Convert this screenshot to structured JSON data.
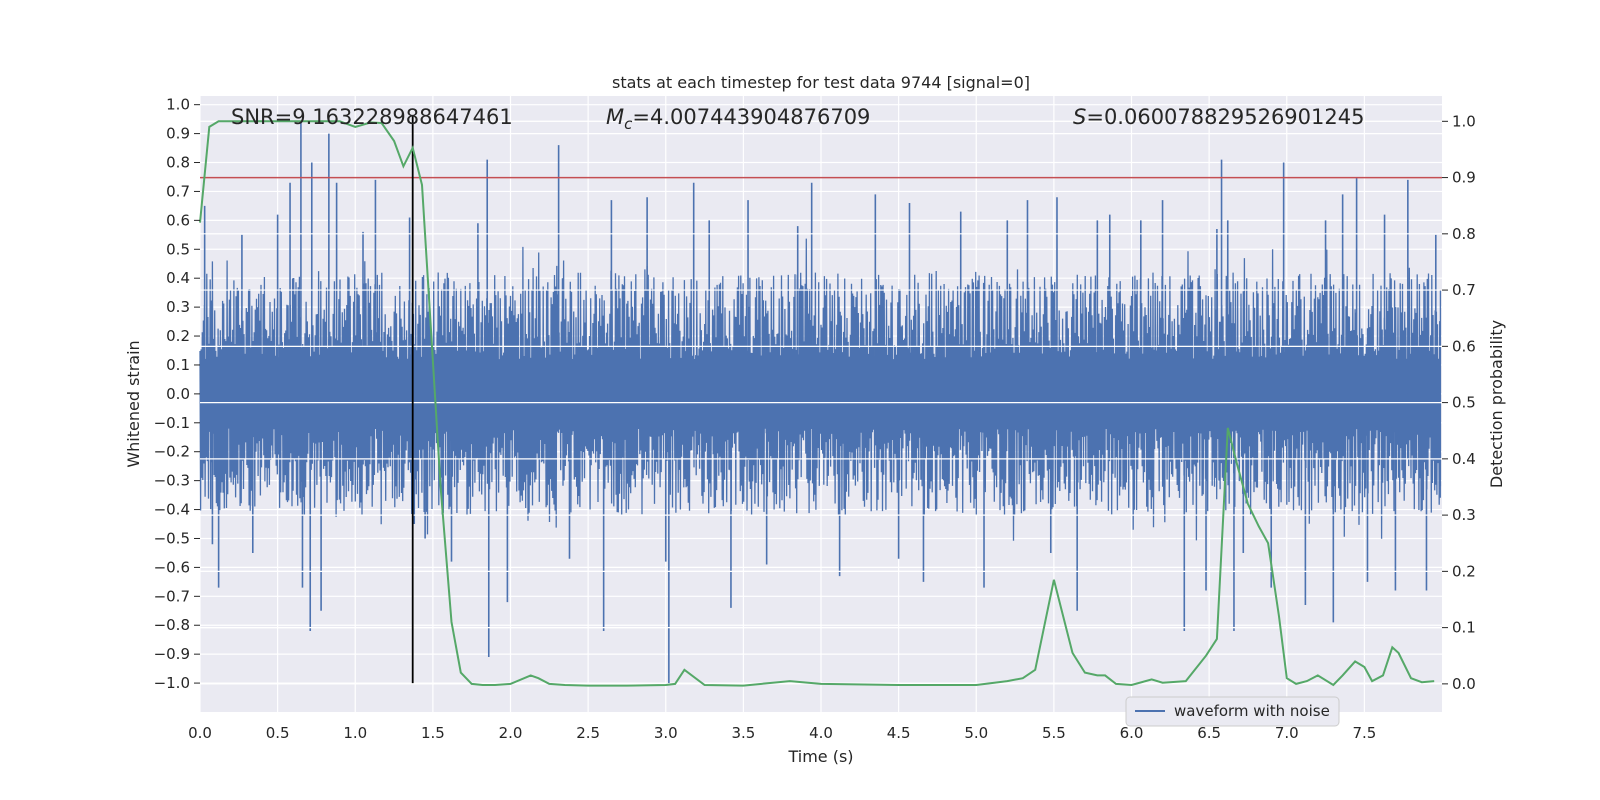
{
  "chart_data": {
    "type": "line",
    "title": "stats at each timestep for test data 9744 [signal=0]",
    "xlabel": "Time (s)",
    "ylabel_left": "Whitened strain",
    "ylabel_right": "Detection probability",
    "xlim": [
      0.0,
      8.0
    ],
    "ylim_left": [
      -1.1,
      1.03
    ],
    "ylim_right": [
      -0.05,
      1.045
    ],
    "xticks": [
      0.0,
      0.5,
      1.0,
      1.5,
      2.0,
      2.5,
      3.0,
      3.5,
      4.0,
      4.5,
      5.0,
      5.5,
      6.0,
      6.5,
      7.0,
      7.5
    ],
    "xtick_labels": [
      "0.0",
      "0.5",
      "1.0",
      "1.5",
      "2.0",
      "2.5",
      "3.0",
      "3.5",
      "4.0",
      "4.5",
      "5.0",
      "5.5",
      "6.0",
      "6.5",
      "7.0",
      "7.5"
    ],
    "yticks_left": [
      1.0,
      0.9,
      0.8,
      0.7,
      0.6,
      0.5,
      0.4,
      0.3,
      0.2,
      0.1,
      0.0,
      -0.1,
      -0.2,
      -0.3,
      -0.4,
      -0.5,
      -0.6,
      -0.7,
      -0.8,
      -0.9,
      -1.0
    ],
    "ytick_labels_left": [
      "1.0",
      "0.9",
      "0.8",
      "0.7",
      "0.6",
      "0.5",
      "0.4",
      "0.3",
      "0.2",
      "0.1",
      "0.0",
      "−0.1",
      "−0.2",
      "−0.3",
      "−0.4",
      "−0.5",
      "−0.6",
      "−0.7",
      "−0.8",
      "−0.9",
      "−1.0"
    ],
    "yticks_right": [
      1.0,
      0.9,
      0.8,
      0.7,
      0.6,
      0.5,
      0.4,
      0.3,
      0.2,
      0.1,
      0.0
    ],
    "ytick_labels_right": [
      "1.0",
      "0.9",
      "0.8",
      "0.7",
      "0.6",
      "0.5",
      "0.4",
      "0.3",
      "0.2",
      "0.1",
      "0.0"
    ],
    "annotations": {
      "snr": "SNR=9.163228988647461",
      "mc_symbol": "M",
      "mc_sub": "c",
      "mc_value": "=4.007443904876709",
      "s_symbol": "S",
      "s_value": "=0.060078829526901245"
    },
    "legend": {
      "label": "waveform with noise",
      "position": "lower-right"
    },
    "threshold_line": {
      "axis": "right",
      "y": 0.9,
      "color": "#c44e52"
    },
    "marker_line": {
      "x": 1.37,
      "color": "#000000"
    },
    "waveform": {
      "name": "waveform with noise",
      "color": "#4c72b0",
      "typical_envelope": 0.42,
      "spikes": [
        {
          "t": 0.03,
          "v": 0.65
        },
        {
          "t": 0.08,
          "v": -0.52
        },
        {
          "t": 0.12,
          "v": -0.67
        },
        {
          "t": 0.27,
          "v": 0.55
        },
        {
          "t": 0.34,
          "v": -0.55
        },
        {
          "t": 0.5,
          "v": 0.62
        },
        {
          "t": 0.58,
          "v": 0.73
        },
        {
          "t": 0.65,
          "v": 0.94
        },
        {
          "t": 0.66,
          "v": -0.67
        },
        {
          "t": 0.71,
          "v": -0.82
        },
        {
          "t": 0.72,
          "v": 0.8
        },
        {
          "t": 0.78,
          "v": -0.75
        },
        {
          "t": 0.83,
          "v": 0.9
        },
        {
          "t": 0.88,
          "v": 0.73
        },
        {
          "t": 1.05,
          "v": 0.56
        },
        {
          "t": 1.13,
          "v": 0.74
        },
        {
          "t": 1.35,
          "v": 0.61
        },
        {
          "t": 1.38,
          "v": -0.45
        },
        {
          "t": 1.45,
          "v": -0.5
        },
        {
          "t": 1.62,
          "v": -0.58
        },
        {
          "t": 1.79,
          "v": 0.59
        },
        {
          "t": 1.85,
          "v": 0.81
        },
        {
          "t": 1.86,
          "v": -0.91
        },
        {
          "t": 1.98,
          "v": -0.72
        },
        {
          "t": 2.31,
          "v": 0.86
        },
        {
          "t": 2.38,
          "v": -0.57
        },
        {
          "t": 2.6,
          "v": -0.82
        },
        {
          "t": 2.65,
          "v": 0.67
        },
        {
          "t": 2.88,
          "v": 0.68
        },
        {
          "t": 3.0,
          "v": -0.58
        },
        {
          "t": 3.02,
          "v": -1.0
        },
        {
          "t": 3.18,
          "v": 0.73
        },
        {
          "t": 3.28,
          "v": 0.6
        },
        {
          "t": 3.42,
          "v": -0.74
        },
        {
          "t": 3.53,
          "v": 0.67
        },
        {
          "t": 3.65,
          "v": -0.59
        },
        {
          "t": 3.85,
          "v": 0.58
        },
        {
          "t": 3.94,
          "v": 0.73
        },
        {
          "t": 4.12,
          "v": -0.63
        },
        {
          "t": 4.35,
          "v": 0.69
        },
        {
          "t": 4.5,
          "v": -0.57
        },
        {
          "t": 4.57,
          "v": 0.66
        },
        {
          "t": 4.66,
          "v": -0.65
        },
        {
          "t": 4.9,
          "v": 0.63
        },
        {
          "t": 5.05,
          "v": -0.67
        },
        {
          "t": 5.2,
          "v": 0.6
        },
        {
          "t": 5.33,
          "v": 0.67
        },
        {
          "t": 5.48,
          "v": -0.55
        },
        {
          "t": 5.52,
          "v": 0.68
        },
        {
          "t": 5.65,
          "v": -0.75
        },
        {
          "t": 5.78,
          "v": 0.6
        },
        {
          "t": 5.86,
          "v": 0.62
        },
        {
          "t": 6.06,
          "v": 0.6
        },
        {
          "t": 6.2,
          "v": 0.67
        },
        {
          "t": 6.34,
          "v": -0.82
        },
        {
          "t": 6.48,
          "v": -0.68
        },
        {
          "t": 6.55,
          "v": 0.57
        },
        {
          "t": 6.58,
          "v": 0.81
        },
        {
          "t": 6.62,
          "v": 0.6
        },
        {
          "t": 6.66,
          "v": -0.82
        },
        {
          "t": 6.72,
          "v": -0.55
        },
        {
          "t": 6.9,
          "v": -0.67
        },
        {
          "t": 6.98,
          "v": 0.8
        },
        {
          "t": 7.12,
          "v": -0.73
        },
        {
          "t": 7.25,
          "v": 0.6
        },
        {
          "t": 7.3,
          "v": -0.79
        },
        {
          "t": 7.36,
          "v": 0.69
        },
        {
          "t": 7.45,
          "v": 0.75
        },
        {
          "t": 7.48,
          "v": -0.1
        },
        {
          "t": 7.52,
          "v": -0.65
        },
        {
          "t": 7.63,
          "v": 0.62
        },
        {
          "t": 7.7,
          "v": -0.68
        },
        {
          "t": 7.78,
          "v": 0.74
        },
        {
          "t": 7.9,
          "v": -0.68
        },
        {
          "t": 7.96,
          "v": 0.55
        }
      ]
    },
    "detection_probability": {
      "name": "detection probability",
      "color": "#55a868",
      "axis": "right",
      "x": [
        0.0,
        0.06,
        0.12,
        0.2,
        0.3,
        0.4,
        0.5,
        0.6,
        0.7,
        0.8,
        0.9,
        1.0,
        1.1,
        1.17,
        1.25,
        1.31,
        1.37,
        1.43,
        1.49,
        1.55,
        1.62,
        1.68,
        1.75,
        1.82,
        1.9,
        2.0,
        2.13,
        2.18,
        2.25,
        2.35,
        2.5,
        2.75,
        3.0,
        3.06,
        3.12,
        3.25,
        3.5,
        3.8,
        4.0,
        4.5,
        5.0,
        5.2,
        5.3,
        5.38,
        5.5,
        5.56,
        5.62,
        5.7,
        5.78,
        5.83,
        5.9,
        6.0,
        6.13,
        6.2,
        6.35,
        6.48,
        6.55,
        6.62,
        6.68,
        6.75,
        6.82,
        6.88,
        6.95,
        7.0,
        7.06,
        7.13,
        7.2,
        7.3,
        7.36,
        7.44,
        7.5,
        7.55,
        7.62,
        7.68,
        7.72,
        7.8,
        7.87,
        7.95
      ],
      "y": [
        0.82,
        0.99,
        1.0,
        1.0,
        1.0,
        1.0,
        1.0,
        1.0,
        1.0,
        1.0,
        1.0,
        0.99,
        0.998,
        0.997,
        0.965,
        0.92,
        0.953,
        0.887,
        0.62,
        0.35,
        0.11,
        0.02,
        0.0,
        -0.002,
        -0.002,
        0.0,
        0.015,
        0.01,
        0.0,
        -0.002,
        -0.003,
        -0.003,
        -0.002,
        0.0,
        0.025,
        -0.002,
        -0.003,
        0.005,
        0.0,
        -0.002,
        -0.002,
        0.005,
        0.01,
        0.025,
        0.185,
        0.12,
        0.055,
        0.02,
        0.015,
        0.015,
        0.0,
        -0.002,
        0.008,
        0.002,
        0.005,
        0.05,
        0.08,
        0.455,
        0.39,
        0.32,
        0.28,
        0.25,
        0.12,
        0.01,
        0.0,
        0.005,
        0.015,
        -0.002,
        0.015,
        0.04,
        0.03,
        0.005,
        0.015,
        0.065,
        0.055,
        0.01,
        0.003,
        0.005
      ]
    }
  }
}
